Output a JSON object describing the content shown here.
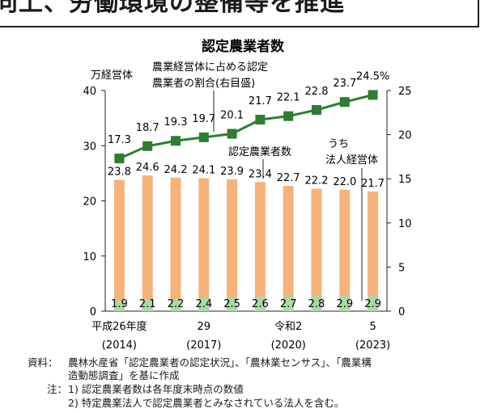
{
  "banner": {
    "text": "向上、労働環境の整備等を推進"
  },
  "chart_data": {
    "type": "bar+line",
    "title": "認定農業者数",
    "left_axis": {
      "unit_label": "万経営体",
      "ylim": [
        0,
        40
      ],
      "ticks": [
        0,
        10,
        20,
        30,
        40
      ]
    },
    "right_axis": {
      "ylim": [
        0,
        25
      ],
      "ticks": [
        0,
        5,
        10,
        15,
        20,
        25
      ]
    },
    "x_labels": [
      {
        "line1": "平成26年度",
        "line2": "(2014)"
      },
      {
        "line1": "",
        "line2": ""
      },
      {
        "line1": "",
        "line2": ""
      },
      {
        "line1": "29",
        "line2": "(2017)"
      },
      {
        "line1": "",
        "line2": ""
      },
      {
        "line1": "",
        "line2": ""
      },
      {
        "line1": "令和2",
        "line2": "(2020)"
      },
      {
        "line1": "",
        "line2": ""
      },
      {
        "line1": "",
        "line2": ""
      },
      {
        "line1": "5",
        "line2": "(2023)"
      }
    ],
    "series": [
      {
        "name": "認定農業者数",
        "axis": "left",
        "type": "bar",
        "values": [
          23.8,
          24.6,
          24.2,
          24.1,
          23.9,
          23.4,
          22.7,
          22.2,
          22.0,
          21.7
        ],
        "color": "#f7b27a"
      },
      {
        "name": "うち法人経営体",
        "axis": "left",
        "type": "bar",
        "values": [
          1.9,
          2.1,
          2.2,
          2.4,
          2.5,
          2.6,
          2.7,
          2.8,
          2.9,
          2.9
        ],
        "color": "#a9d9a9"
      },
      {
        "name": "農業経営体に占める認定農業者の割合(右目盛)",
        "axis": "right",
        "type": "line",
        "values": [
          17.3,
          18.7,
          19.3,
          19.7,
          20.1,
          21.7,
          22.1,
          22.8,
          23.7,
          24.5
        ],
        "labels": [
          "17.3",
          "18.7",
          "19.3",
          "19.7",
          "20.1",
          "21.7",
          "22.1",
          "22.8",
          "23.7",
          "24.5%"
        ],
        "color": "#2e7d32"
      }
    ],
    "annotations": {
      "ratio_line1": "農業経営体に占める認定",
      "ratio_line2": "農業者の割合(右目盛)",
      "count_label": "認定農業者数",
      "corp_line1": "うち",
      "corp_line2": "法人経営体"
    },
    "grid": false
  },
  "notes": {
    "source_label": "資料：",
    "source_line1": "農林水産省「認定農業者の認定状況」、「農林業センサス」、「農業構",
    "source_line2": "造動態調査」を基に作成",
    "note_label": "注：",
    "note1": "1) 認定農業者数は各年度末時点の数値",
    "note2": "2) 特定農業法人で認定農業者とみなされている法人を含む。"
  }
}
